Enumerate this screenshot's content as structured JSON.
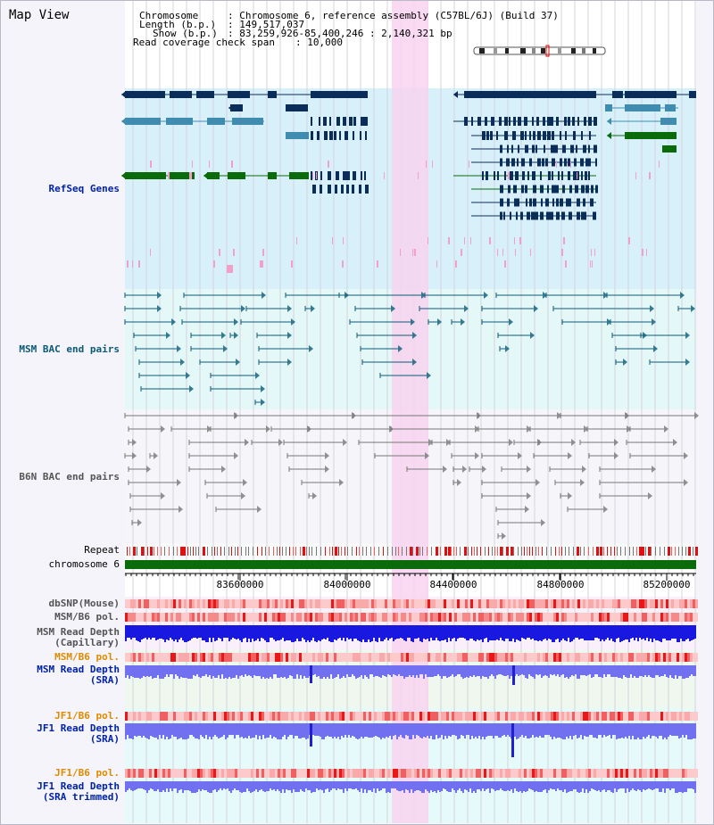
{
  "page": {
    "title": "Map View"
  },
  "info": {
    "chromosome_label": "Chromosome",
    "chromosome_value": ": Chromosome 6, reference assembly (C57BL/6J) (Build 37)",
    "length_label": "Length (b.p.)",
    "length_value": ": 149,517,037",
    "show_label": "Show (b.p.)",
    "show_value": ": 83,259,926-85,400,246 : 2,140,321 bp",
    "coverage_label": "Read coverage check span",
    "coverage_value": ": 10,000"
  },
  "tracks": {
    "refseq": "RefSeq Genes",
    "msm_bac": "MSM BAC end pairs",
    "b6n_bac": "B6N BAC end pairs",
    "repeat": "Repeat",
    "chromosome": "chromosome 6",
    "dbsnp": "dbSNP(Mouse)",
    "msm_b6_pol_1": "MSM/B6 pol.",
    "msm_depth_cap_1": "MSM Read Depth",
    "msm_depth_cap_2": "(Capillary)",
    "msm_b6_pol_2": "MSM/B6 pol.",
    "msm_depth_sra_1": "MSM Read Depth",
    "msm_depth_sra_2": "(SRA)",
    "jf1_pol_1": "JF1/B6 pol.",
    "jf1_depth_sra_1": "JF1 Read Depth",
    "jf1_depth_sra_2": "(SRA)",
    "jf1_pol_2": "JF1/B6 pol.",
    "jf1_depth_trim_1": "JF1 Read Depth",
    "jf1_depth_trim_2": "(SRA trimmed)"
  },
  "axis": {
    "ticks": [
      "83600000",
      "84000000",
      "84400000",
      "84800000",
      "85200000"
    ]
  },
  "colors": {
    "refseq_bg": "#d8f0fa",
    "bac_bg": "#e4f8f8",
    "b6n_bg": "#f6f6fa",
    "highlight": "#f8d4f0",
    "gene_dark": "#0a2d5a",
    "gene_mid": "#3f8cb0",
    "gene_green": "#0b6b0b",
    "msm_bac": "#0a5a78",
    "b6n_bac": "#666666",
    "chromosome_bar": "#0b6b0b",
    "label_blue": "#0022aa",
    "label_teal": "#0a5a78",
    "label_orange": "#e08a00",
    "depth_blue": "#1515e0",
    "depth_light": "#7070f0"
  }
}
